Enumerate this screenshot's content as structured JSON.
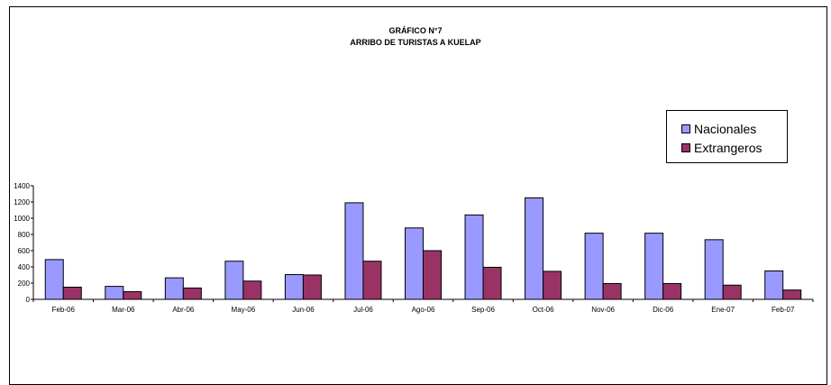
{
  "chart_data": {
    "type": "bar",
    "title": "GRÁFICO N°7",
    "subtitle": "ARRIBO DE TURISTAS A KUELAP",
    "categories": [
      "Feb-06",
      "Mar-06",
      "Abr-06",
      "May-06",
      "Jun-06",
      "Jul-06",
      "Ago-06",
      "Sep-06",
      "Oct-06",
      "Nov-06",
      "Dic-06",
      "Ene-07",
      "Feb-07"
    ],
    "series": [
      {
        "name": "Nacionales",
        "color": "#9999ff",
        "values": [
          490,
          160,
          265,
          470,
          305,
          1190,
          880,
          1040,
          1250,
          815,
          815,
          735,
          350
        ]
      },
      {
        "name": "Extrangeros",
        "color": "#993366",
        "values": [
          150,
          95,
          140,
          225,
          300,
          470,
          600,
          395,
          345,
          195,
          195,
          175,
          115
        ]
      }
    ],
    "y_ticks": [
      "0",
      "200",
      "400",
      "600",
      "800",
      "1000",
      "1200",
      "1400"
    ],
    "ylim": [
      0,
      1400
    ],
    "xlabel": "",
    "ylabel": "",
    "legend": "right",
    "grid": false
  }
}
